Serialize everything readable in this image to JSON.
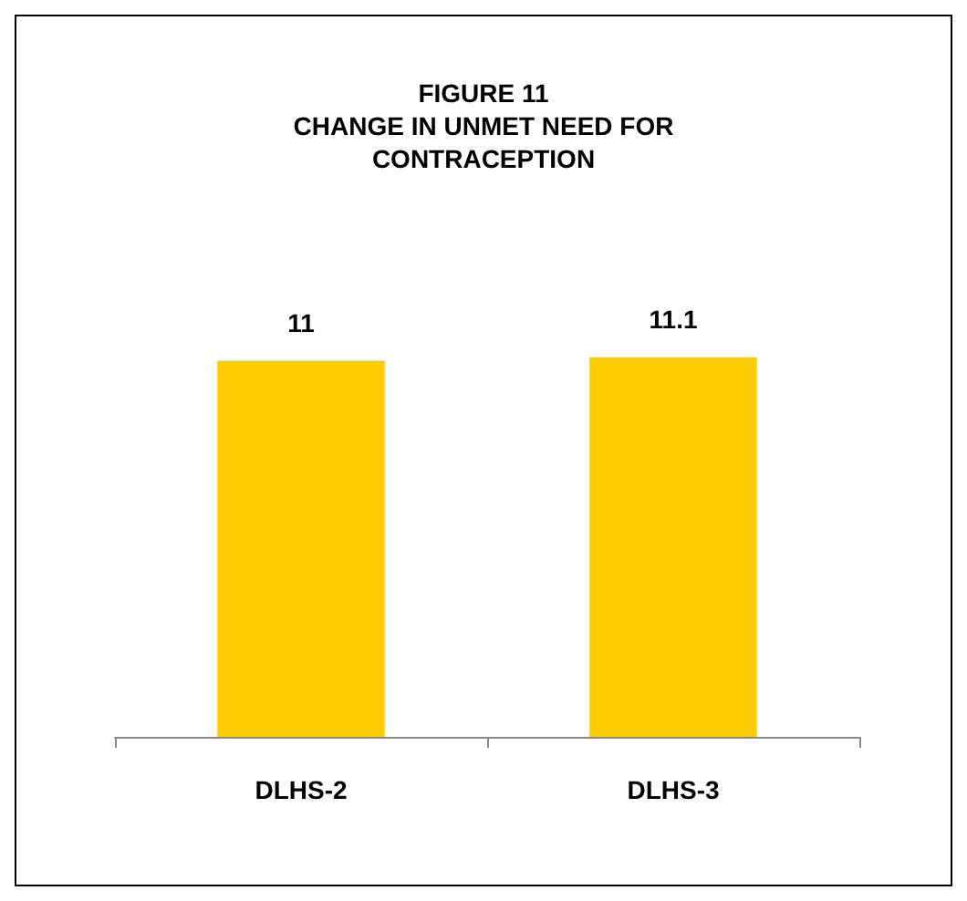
{
  "chart_data": {
    "type": "bar",
    "title": "FIGURE 11\nCHANGE IN UNMET NEED FOR\nCONTRACEPTION",
    "categories": [
      "DLHS-2",
      "DLHS-3"
    ],
    "values": [
      11,
      11.1
    ],
    "color": "#ffcc00",
    "data_labels": true
  }
}
